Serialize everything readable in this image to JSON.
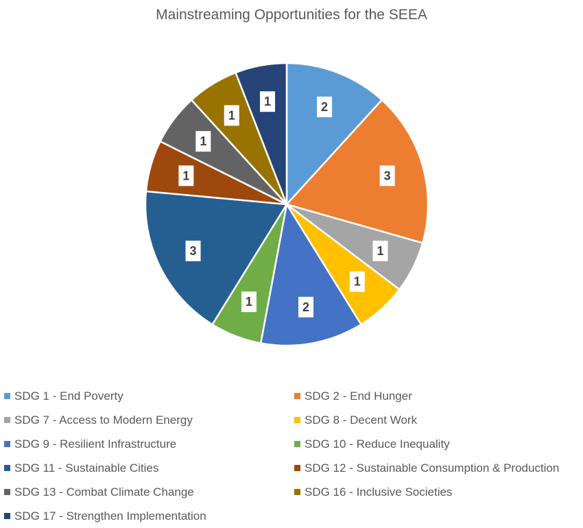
{
  "chart_data": {
    "type": "pie",
    "title": "Mainstreaming Opportunities for the SEEA",
    "legend_position": "bottom",
    "data_labels": true,
    "slices": [
      {
        "label": "SDG 1 - End Poverty",
        "value": 2,
        "color": "#5B9BD5"
      },
      {
        "label": "SDG 2 - End Hunger",
        "value": 3,
        "color": "#ED7D31"
      },
      {
        "label": "SDG 7 - Access to Modern Energy",
        "value": 1,
        "color": "#A5A5A5"
      },
      {
        "label": "SDG 8 - Decent Work",
        "value": 1,
        "color": "#FFC000"
      },
      {
        "label": "SDG 9 - Resilient Infrastructure",
        "value": 2,
        "color": "#4472C4"
      },
      {
        "label": "SDG 10 - Reduce Inequality",
        "value": 1,
        "color": "#70AD47"
      },
      {
        "label": "SDG 11 - Sustainable Cities",
        "value": 3,
        "color": "#255E91"
      },
      {
        "label": "SDG 12 - Sustainable Consumption & Production",
        "value": 1,
        "color": "#9E480E"
      },
      {
        "label": "SDG 13 - Combat Climate Change",
        "value": 1,
        "color": "#636363"
      },
      {
        "label": "SDG 16 - Inclusive Societies",
        "value": 1,
        "color": "#997300"
      },
      {
        "label": "SDG 17 - Strengthen Implementation",
        "value": 1,
        "color": "#264478"
      }
    ]
  }
}
